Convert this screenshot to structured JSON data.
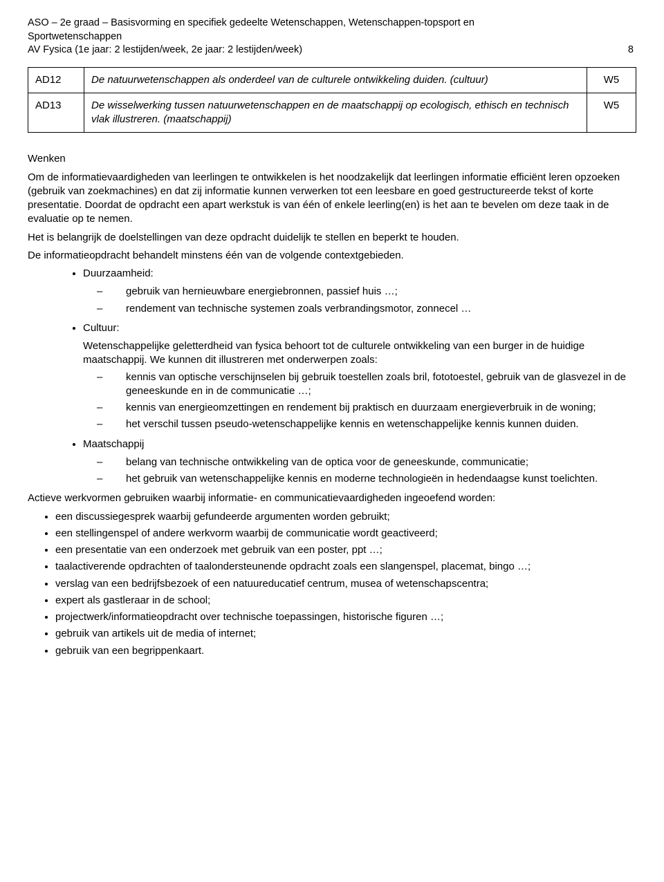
{
  "header": {
    "line1": "ASO – 2e graad – Basisvorming en specifiek gedeelte Wetenschappen, Wetenschappen-topsport en",
    "line2": "Sportwetenschappen",
    "line3": "AV Fysica (1e jaar: 2 lestijden/week, 2e jaar: 2 lestijden/week)",
    "page_number": "8"
  },
  "table": {
    "rows": [
      {
        "code": "AD12",
        "text": "De natuurwetenschappen als onderdeel van de culturele ontwikkeling duiden. (cultuur)",
        "tag": "W5"
      },
      {
        "code": "AD13",
        "text": "De wisselwerking tussen natuurwetenschappen en de maatschappij op ecologisch, ethisch en technisch vlak illustreren. (maatschappij)",
        "tag": "W5"
      }
    ]
  },
  "wenken_heading": "Wenken",
  "wenken_paragraphs": [
    "Om de informatievaardigheden van leerlingen te ontwikkelen is het noodzakelijk dat leerlingen informatie efficiënt leren opzoeken (gebruik van zoekmachines) en dat zij informatie kunnen verwerken tot een leesbare en goed gestructureerde tekst of korte presentatie. Doordat de opdracht een apart werkstuk is van één of enkele leerling(en) is het aan te bevelen om deze taak in de evaluatie op te nemen.",
    "Het is belangrijk de doelstellingen van deze opdracht duidelijk te stellen en beperkt te houden.",
    "De informatieopdracht behandelt minstens één van de volgende contextgebieden."
  ],
  "context_items": [
    {
      "title": "Duurzaamheid:",
      "intro": "",
      "sub": [
        "gebruik van hernieuwbare energiebronnen, passief huis …;",
        "rendement van technische systemen zoals verbrandingsmotor, zonnecel …"
      ]
    },
    {
      "title": "Cultuur:",
      "intro": "Wetenschappelijke geletterdheid van fysica behoort tot de culturele ontwikkeling van een burger in de huidige maatschappij. We kunnen dit illustreren met onderwerpen zoals:",
      "sub": [
        "kennis van optische verschijnselen bij gebruik toestellen zoals bril, fototoestel, gebruik van de glasvezel in de geneeskunde en in de communicatie …;",
        "kennis van energieomzettingen en rendement bij praktisch en duurzaam energieverbruik in de woning;",
        "het verschil tussen pseudo-wetenschappelijke kennis en wetenschappelijke kennis kunnen duiden."
      ]
    },
    {
      "title": "Maatschappij",
      "intro": "",
      "sub": [
        "belang van technische ontwikkeling van de optica voor de geneeskunde, communicatie;",
        "het gebruik van wetenschappelijke kennis en moderne technologieën in hedendaagse kunst toelichten."
      ]
    }
  ],
  "actieve_intro": "Actieve werkvormen gebruiken waarbij informatie- en communicatievaardigheden ingeoefend worden:",
  "actieve_items": [
    "een discussiegesprek waarbij gefundeerde argumenten worden gebruikt;",
    "een stellingenspel of andere werkvorm waarbij de communicatie wordt geactiveerd;",
    "een presentatie van een onderzoek met gebruik van een poster, ppt …;",
    "taalactiverende opdrachten of taalondersteunende opdracht zoals een slangenspel, placemat, bingo …;",
    "verslag van een bedrijfsbezoek of een natuureducatief centrum, musea of wetenschapscentra;",
    "expert als gastleraar in de school;",
    "projectwerk/informatieopdracht over technische toepassingen, historische figuren …;",
    "gebruik van artikels uit de media of internet;",
    "gebruik van een begrippenkaart."
  ]
}
